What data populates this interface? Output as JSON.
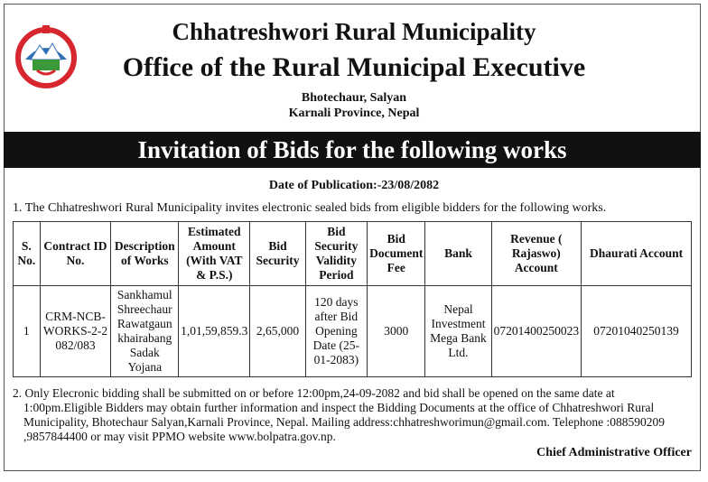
{
  "header": {
    "municipality": "Chhatreshwori Rural Municipality",
    "office": "Office of the Rural Municipal Executive",
    "address_line1": "Bhotechaur, Salyan",
    "address_line2": "Karnali Province, Nepal"
  },
  "banner": "Invitation of Bids for the following works",
  "publication_date": "Date of Publication:-23/08/2082",
  "intro": "1. The Chhatreshwori Rural Municipality invites electronic sealed bids from eligible bidders for the following works.",
  "table": {
    "headers": [
      "S. No.",
      "Contract ID No.",
      "Description of Works",
      "Estimated Amount (With VAT & P.S.)",
      "Bid Security",
      "Bid Security Validity Period",
      "Bid Document Fee",
      "Bank",
      "Revenue ( Rajaswo) Account",
      "Dhaurati Account"
    ],
    "rows": [
      [
        "1",
        "CRM-NCB-WORKS-2-2082/083",
        "Sankhamul Shreechaur Rawatgaun khairabang Sadak Yojana",
        "1,01,59,859.3",
        "2,65,000",
        "120 days after Bid Opening Date (25-01-2083)",
        "3000",
        "Nepal Investment Mega Bank Ltd.",
        "07201400250023",
        "07201040250139"
      ]
    ]
  },
  "note2": "2. Only Elecronic bidding shall be submitted on or before 12:00pm,24-09-2082 and bid shall be opened on the same date at 1:00pm.Eligible Bidders may obtain further information and inspect the Bidding Documents at the office of Chhatreshwori Rural Municipality, Bhotechaur Salyan,Karnali Province, Nepal. Mailing address:chhatreshworimun@gmail.com. Telephone :088590209 ,9857844400 or may visit PPMO website www.bolpatra.gov.np.",
  "signatory": "Chief Administrative Officer",
  "logo_icon": "nepal-government-emblem",
  "colors": {
    "banner_bg": "#111111",
    "emblem_red": "#d7262e",
    "emblem_blue": "#2f6fb5"
  }
}
